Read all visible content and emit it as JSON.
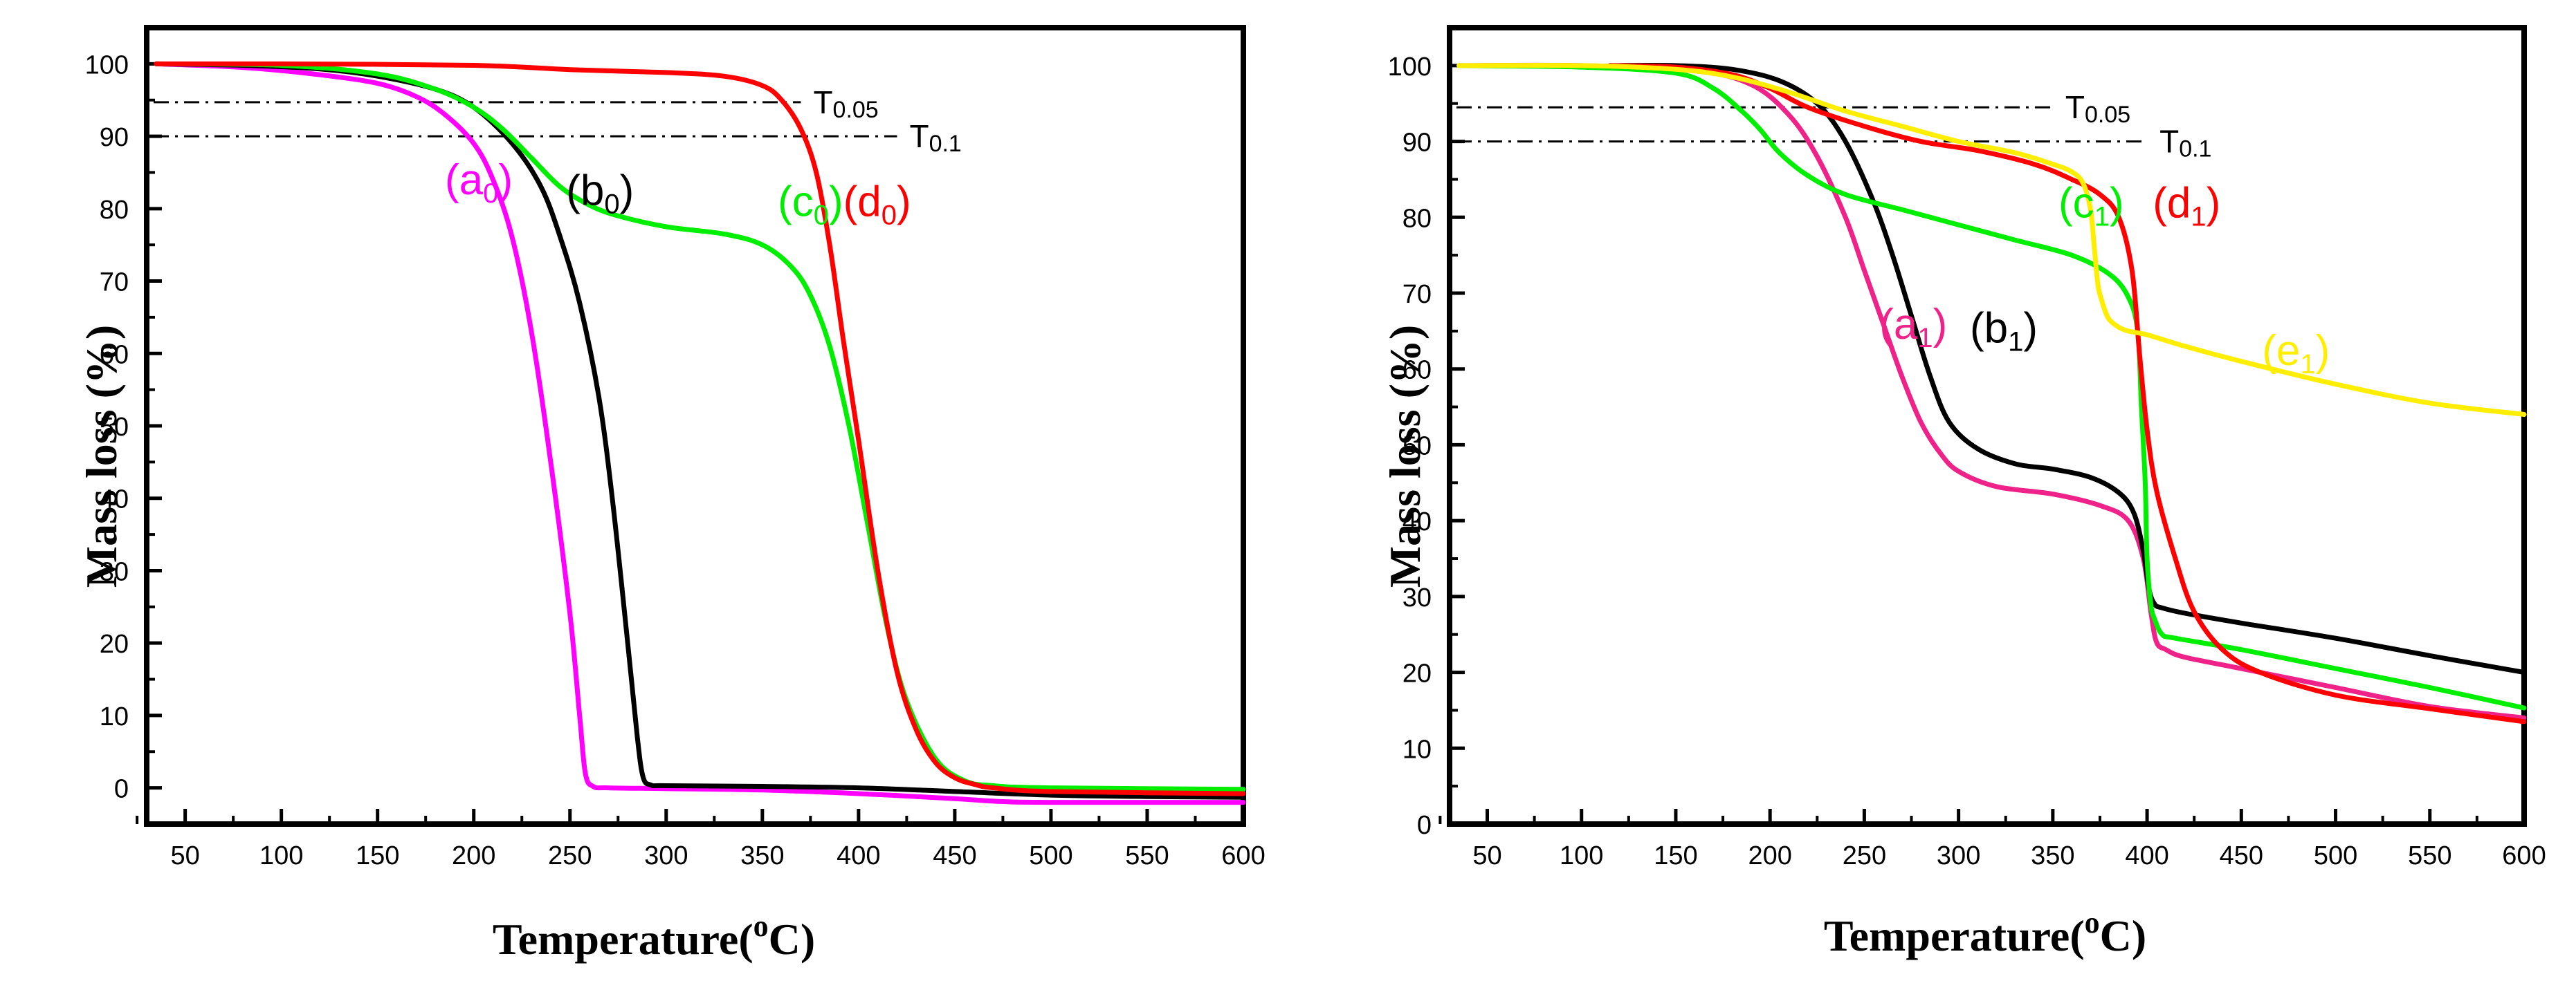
{
  "chart_data": [
    {
      "type": "line",
      "xlabel": "Temperature",
      "xlabel_unit": "(oC)",
      "ylabel": "Mass loss (%)",
      "xlim": [
        30,
        600
      ],
      "ylim": [
        -5,
        105
      ],
      "xticks": [
        50,
        100,
        150,
        200,
        250,
        300,
        350,
        400,
        450,
        500,
        550,
        600
      ],
      "yticks": [
        0,
        10,
        20,
        30,
        40,
        50,
        60,
        70,
        80,
        90,
        100
      ],
      "xtick_labels": [
        "50",
        "100",
        "150",
        "200",
        "250",
        "300",
        "350",
        "400",
        "450",
        "500",
        "550",
        "600"
      ],
      "ytick_labels": [
        "0",
        "10",
        "20",
        "30",
        "40",
        "50",
        "60",
        "70",
        "80",
        "90",
        "100"
      ],
      "threshold_lines": [
        {
          "text_main": "T",
          "text_sub": "0.05",
          "y": 94.7,
          "x_end": 370
        },
        {
          "text_main": "T",
          "text_sub": "0.1",
          "y": 90.0,
          "x_end": 420
        }
      ],
      "series": [
        {
          "name": "a0",
          "main": "(a",
          "sub": "0",
          "close": ")",
          "color": "#ff00ff",
          "label_x": 185,
          "label_y": 82,
          "x": [
            35,
            80,
            120,
            150,
            170,
            185,
            200,
            210,
            220,
            230,
            240,
            250,
            255,
            258,
            262,
            270,
            300,
            350,
            400,
            450,
            475,
            500,
            600
          ],
          "y": [
            100,
            99.5,
            98.5,
            97.3,
            95.5,
            93,
            89,
            84,
            76,
            63,
            45,
            24,
            10,
            2,
            0.2,
            0,
            -0.1,
            -0.3,
            -0.8,
            -1.5,
            -1.9,
            -2.0,
            -2.0
          ]
        },
        {
          "name": "b0",
          "main": "(b",
          "sub": "0",
          "close": ")",
          "color": "#000000",
          "label_x": 248,
          "label_y": 80.5,
          "x": [
            35,
            80,
            120,
            150,
            180,
            200,
            220,
            235,
            245,
            255,
            265,
            272,
            280,
            285,
            288,
            292,
            300,
            350,
            400,
            450,
            500,
            550,
            600
          ],
          "y": [
            100,
            99.8,
            99.3,
            98.3,
            96.5,
            94,
            89,
            83,
            76,
            67,
            54,
            40,
            20,
            7,
            1.5,
            0.4,
            0.3,
            0.2,
            0,
            -0.5,
            -1,
            -1.2,
            -1.3
          ]
        },
        {
          "name": "c0",
          "main": "(c",
          "sub": "0",
          "close": ")",
          "color": "#00ee00",
          "label_x": 358,
          "label_y": 79,
          "x": [
            35,
            100,
            150,
            180,
            200,
            215,
            230,
            245,
            260,
            275,
            300,
            330,
            350,
            365,
            375,
            385,
            395,
            405,
            415,
            425,
            440,
            455,
            470,
            500,
            600
          ],
          "y": [
            100,
            99.8,
            98.6,
            96.5,
            94,
            91,
            87,
            83,
            80.5,
            79,
            77.5,
            76.5,
            75,
            72,
            68,
            61,
            50,
            36,
            22,
            12,
            4,
            1,
            0.3,
            0,
            -0.2
          ]
        },
        {
          "name": "d0",
          "main": "(d",
          "sub": "0",
          "close": ")",
          "color": "#ff0000",
          "label_x": 392,
          "label_y": 79,
          "x": [
            35,
            100,
            200,
            250,
            300,
            330,
            350,
            360,
            370,
            378,
            385,
            392,
            400,
            410,
            420,
            430,
            440,
            450,
            460,
            470,
            500,
            600
          ],
          "y": [
            100,
            100,
            99.8,
            99.2,
            98.8,
            98.3,
            97,
            95,
            91,
            85,
            75,
            62,
            48,
            30,
            16,
            8,
            3.5,
            1.4,
            0.5,
            0,
            -0.5,
            -0.8
          ]
        }
      ]
    },
    {
      "type": "line",
      "xlabel": "Temperature",
      "xlabel_unit": "(oC)",
      "ylabel": "Mass loss (%)",
      "xlim": [
        30,
        600
      ],
      "ylim": [
        0,
        105
      ],
      "xticks": [
        50,
        100,
        150,
        200,
        250,
        300,
        350,
        400,
        450,
        500,
        550,
        600
      ],
      "yticks": [
        0,
        10,
        20,
        30,
        40,
        50,
        60,
        70,
        80,
        90,
        100
      ],
      "xtick_labels": [
        "50",
        "100",
        "150",
        "200",
        "250",
        "300",
        "350",
        "400",
        "450",
        "500",
        "550",
        "600"
      ],
      "ytick_labels": [
        "0",
        "10",
        "20",
        "30",
        "40",
        "50",
        "60",
        "70",
        "80",
        "90",
        "100"
      ],
      "threshold_lines": [
        {
          "text_main": "T",
          "text_sub": "0.05",
          "y": 94.5,
          "x_end": 350
        },
        {
          "text_main": "T",
          "text_sub": "0.1",
          "y": 90.0,
          "x_end": 400
        }
      ],
      "series": [
        {
          "name": "a1",
          "main": "(a",
          "sub": "1",
          "close": ")",
          "color": "#ee2288",
          "label_x": 258,
          "label_y": 64,
          "x": [
            35,
            100,
            160,
            190,
            210,
            225,
            240,
            250,
            260,
            270,
            280,
            290,
            300,
            320,
            350,
            375,
            390,
            398,
            402,
            405,
            410,
            420,
            450,
            500,
            550,
            600
          ],
          "y": [
            100,
            100,
            99.3,
            97.5,
            93.5,
            88,
            80,
            73,
            66,
            59,
            53,
            49,
            46.5,
            44.5,
            43.5,
            42,
            40,
            35,
            28,
            24,
            23,
            22,
            20.5,
            18,
            15.5,
            14
          ]
        },
        {
          "name": "b1",
          "main": "(b",
          "sub": "1",
          "close": ")",
          "color": "#000000",
          "label_x": 306,
          "label_y": 63.5,
          "x": [
            115,
            150,
            180,
            205,
            225,
            240,
            255,
            265,
            275,
            285,
            295,
            310,
            330,
            350,
            370,
            385,
            393,
            398,
            401,
            404,
            408,
            420,
            450,
            500,
            550,
            600
          ],
          "y": [
            100,
            100,
            99.5,
            98,
            95,
            90,
            82,
            75,
            67,
            59,
            53,
            49.5,
            47.5,
            46.8,
            45.7,
            43.7,
            41,
            36,
            31,
            29,
            28.5,
            27.8,
            26.5,
            24.5,
            22.2,
            20
          ]
        },
        {
          "name": "c1",
          "main": "(c",
          "sub": "1",
          "close": ")",
          "color": "#00ee00",
          "label_x": 353,
          "label_y": 80,
          "x": [
            35,
            100,
            150,
            170,
            185,
            195,
            205,
            220,
            240,
            270,
            300,
            330,
            360,
            380,
            390,
            395,
            397,
            399,
            400,
            402,
            404,
            408,
            415,
            450,
            500,
            550,
            600
          ],
          "y": [
            100,
            99.8,
            99,
            97,
            94,
            91.5,
            88.5,
            85.5,
            83,
            81,
            79,
            77,
            75,
            72.5,
            69.5,
            65,
            55,
            45,
            35,
            29,
            27,
            25,
            24.5,
            23,
            20.5,
            18,
            15.3
          ]
        },
        {
          "name": "d1",
          "main": "(d",
          "sub": "1",
          "close": ")",
          "color": "#ff0000",
          "label_x": 403,
          "label_y": 80,
          "x": [
            115,
            150,
            180,
            200,
            220,
            250,
            280,
            310,
            340,
            360,
            375,
            385,
            392,
            396,
            400,
            405,
            415,
            425,
            440,
            460,
            500,
            550,
            600
          ],
          "y": [
            100,
            99.8,
            98.8,
            97,
            94.5,
            92,
            90,
            88.8,
            87,
            85,
            83,
            80,
            73,
            62,
            52,
            44,
            35,
            28,
            23,
            20,
            17,
            15.2,
            13.5
          ]
        },
        {
          "name": "e1",
          "main": "(e",
          "sub": "1",
          "close": ")",
          "color": "#ffee00",
          "label_x": 461,
          "label_y": 60.5,
          "x": [
            35,
            100,
            150,
            180,
            210,
            240,
            270,
            300,
            330,
            350,
            360,
            366,
            370,
            372,
            374,
            376,
            378,
            380,
            385,
            390,
            400,
            420,
            450,
            500,
            550,
            600
          ],
          "y": [
            100,
            100,
            99.5,
            98.5,
            96.5,
            94,
            92,
            90,
            88.5,
            87,
            86,
            84.5,
            81,
            76,
            71,
            69,
            67.5,
            66.5,
            65.5,
            65,
            64.5,
            63,
            61,
            58,
            55.5,
            54
          ]
        }
      ]
    }
  ]
}
